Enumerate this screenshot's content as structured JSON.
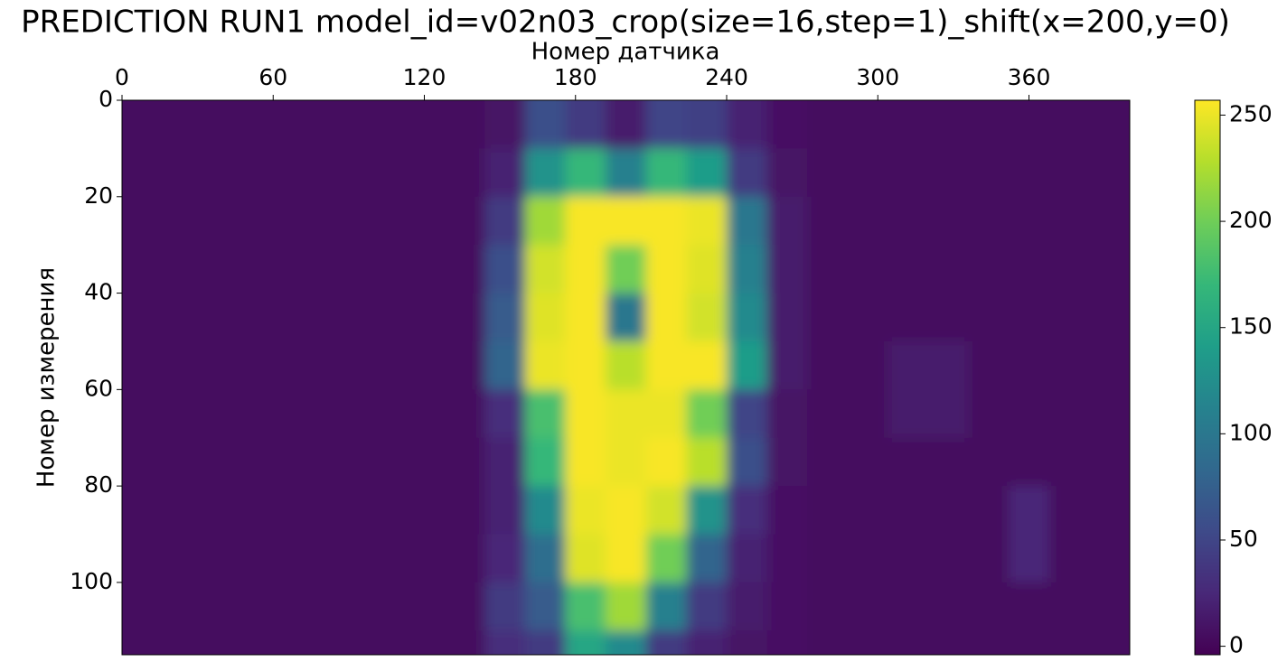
{
  "chart_data": {
    "type": "heatmap",
    "title": "PREDICTION RUN1 model_id=v02n03_crop(size=16,step=1)_shift(x=200,y=0)",
    "xlabel": "Номер датчика",
    "ylabel": "Номер измерения",
    "colormap": "viridis",
    "xbins": [
      0,
      16,
      32,
      48,
      64,
      80,
      96,
      112,
      128,
      144,
      160,
      176,
      192,
      208,
      224,
      240,
      256,
      272,
      288,
      304,
      320,
      336,
      352,
      368,
      384,
      400
    ],
    "ybins": [
      0,
      10,
      20,
      30,
      40,
      50,
      60,
      70,
      80,
      90,
      100,
      110,
      115
    ],
    "z": [
      [
        5,
        5,
        5,
        5,
        5,
        5,
        5,
        5,
        5,
        10,
        60,
        40,
        15,
        50,
        45,
        20,
        8,
        5,
        5,
        5,
        5,
        5,
        5,
        5,
        5
      ],
      [
        5,
        5,
        5,
        5,
        5,
        5,
        5,
        5,
        5,
        20,
        130,
        170,
        110,
        170,
        140,
        40,
        10,
        5,
        5,
        5,
        5,
        5,
        5,
        5,
        5
      ],
      [
        5,
        5,
        5,
        5,
        5,
        5,
        5,
        5,
        5,
        40,
        220,
        255,
        255,
        255,
        250,
        100,
        15,
        5,
        5,
        5,
        5,
        5,
        5,
        5,
        5
      ],
      [
        5,
        5,
        5,
        5,
        5,
        5,
        5,
        5,
        5,
        60,
        240,
        255,
        200,
        255,
        245,
        110,
        15,
        5,
        5,
        5,
        5,
        5,
        5,
        5,
        5
      ],
      [
        5,
        5,
        5,
        5,
        5,
        5,
        5,
        5,
        5,
        70,
        245,
        255,
        100,
        255,
        240,
        120,
        15,
        5,
        5,
        5,
        5,
        5,
        5,
        5,
        5
      ],
      [
        5,
        5,
        5,
        5,
        5,
        5,
        5,
        5,
        5,
        80,
        250,
        255,
        230,
        255,
        255,
        140,
        15,
        5,
        5,
        15,
        15,
        5,
        5,
        5,
        5
      ],
      [
        5,
        5,
        5,
        5,
        5,
        5,
        5,
        5,
        5,
        30,
        180,
        255,
        250,
        250,
        200,
        50,
        10,
        5,
        5,
        15,
        15,
        5,
        5,
        5,
        5
      ],
      [
        5,
        5,
        5,
        5,
        5,
        5,
        5,
        5,
        5,
        20,
        170,
        255,
        250,
        255,
        230,
        60,
        10,
        5,
        5,
        5,
        5,
        5,
        5,
        5,
        5
      ],
      [
        5,
        5,
        5,
        5,
        5,
        5,
        5,
        5,
        5,
        20,
        120,
        250,
        255,
        240,
        130,
        30,
        8,
        5,
        5,
        5,
        5,
        5,
        25,
        5,
        5
      ],
      [
        5,
        5,
        5,
        5,
        5,
        5,
        5,
        5,
        5,
        25,
        90,
        245,
        255,
        200,
        80,
        20,
        8,
        5,
        5,
        5,
        5,
        5,
        25,
        5,
        5
      ],
      [
        5,
        5,
        5,
        5,
        5,
        5,
        5,
        5,
        5,
        40,
        70,
        180,
        220,
        110,
        40,
        15,
        8,
        5,
        5,
        5,
        5,
        5,
        5,
        5,
        5
      ],
      [
        5,
        5,
        5,
        5,
        5,
        5,
        5,
        5,
        5,
        30,
        40,
        150,
        120,
        40,
        20,
        10,
        8,
        5,
        5,
        5,
        5,
        5,
        5,
        5,
        5
      ]
    ],
    "xlim": [
      0,
      400
    ],
    "ylim": [
      0,
      115
    ],
    "xticks": [
      0,
      60,
      120,
      180,
      240,
      300,
      360
    ],
    "yticks": [
      0,
      20,
      40,
      60,
      80,
      100
    ],
    "clim": [
      -4,
      257
    ],
    "cticks": [
      0,
      50,
      100,
      150,
      200,
      250
    ]
  }
}
